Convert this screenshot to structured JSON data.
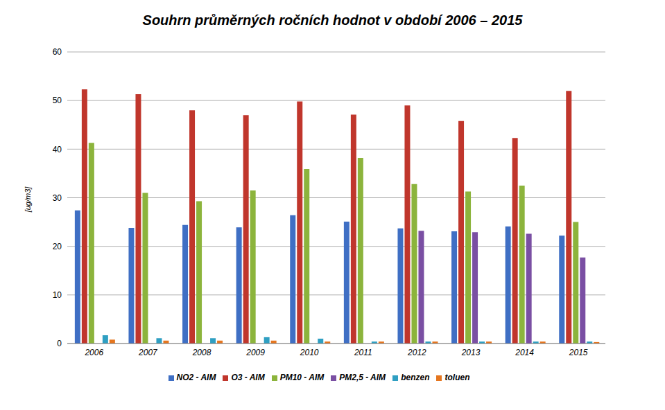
{
  "chart_data": {
    "type": "bar",
    "title": "Souhrn průměrných ročních hodnot v období 2006 – 2015",
    "y_label": "[ug/m3]",
    "categories": [
      "2006",
      "2007",
      "2008",
      "2009",
      "2010",
      "2011",
      "2012",
      "2013",
      "2014",
      "2015"
    ],
    "series": [
      {
        "name": "NO2 - AIM",
        "color": "#3f6fc4",
        "values": [
          27.4,
          23.8,
          24.4,
          23.9,
          26.4,
          25.1,
          23.7,
          23.1,
          24.1,
          22.2
        ]
      },
      {
        "name": "O3 - AIM",
        "color": "#c0362c",
        "values": [
          52.3,
          51.3,
          48.0,
          47.0,
          49.8,
          47.1,
          49.0,
          45.8,
          42.3,
          52.0
        ]
      },
      {
        "name": "PM10 - AIM",
        "color": "#8cb43c",
        "values": [
          41.3,
          31.0,
          29.3,
          31.5,
          35.9,
          38.2,
          32.8,
          31.3,
          32.5,
          25.0
        ]
      },
      {
        "name": "PM2,5 - AIM",
        "color": "#7a4fa3",
        "values": [
          null,
          null,
          null,
          null,
          null,
          null,
          23.2,
          22.9,
          22.6,
          17.7
        ]
      },
      {
        "name": "benzen",
        "color": "#2f9fc2",
        "values": [
          1.7,
          1.1,
          1.1,
          1.3,
          1.0,
          0.4,
          0.4,
          0.4,
          0.4,
          0.4
        ]
      },
      {
        "name": "toluen",
        "color": "#e5761f",
        "values": [
          0.8,
          0.6,
          0.6,
          0.6,
          0.4,
          0.4,
          0.4,
          0.4,
          0.4,
          0.3
        ]
      }
    ],
    "ylim": [
      0,
      60
    ],
    "yticks": [
      0,
      10,
      20,
      30,
      40,
      50,
      60
    ],
    "grid": true,
    "legend": "bottom"
  }
}
